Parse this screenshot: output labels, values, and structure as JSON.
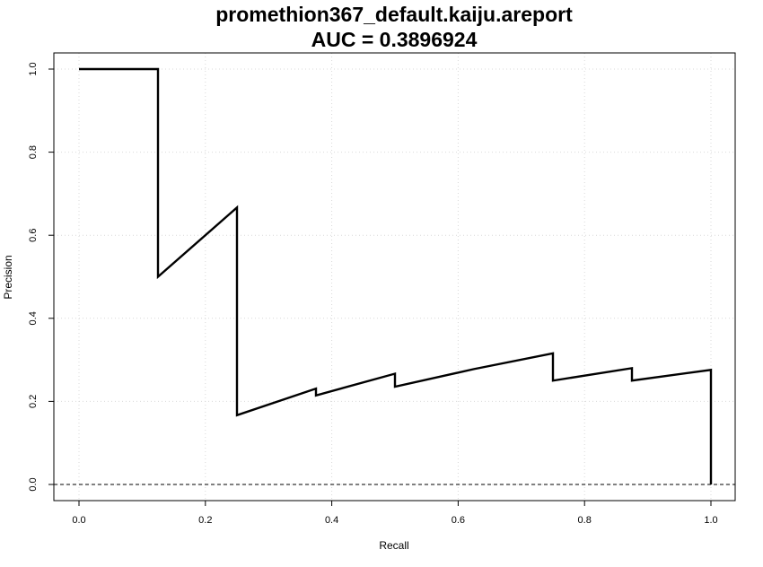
{
  "chart_data": {
    "type": "line",
    "title": "promethion367_default.kaiju.areport",
    "subtitle": "AUC = 0.3896924",
    "xlabel": "Recall",
    "ylabel": "Precision",
    "xlim": [
      0,
      1
    ],
    "ylim": [
      0,
      1
    ],
    "x_ticks": [
      "0.0",
      "0.2",
      "0.4",
      "0.6",
      "0.8",
      "1.0"
    ],
    "y_ticks": [
      "0.0",
      "0.2",
      "0.4",
      "0.6",
      "0.8",
      "1.0"
    ],
    "grid": true,
    "baseline": {
      "y": 0,
      "style": "dashed"
    },
    "series": [
      {
        "x": [
          0,
          0.125,
          0.125,
          0.25,
          0.25,
          0.375,
          0.375,
          0.5,
          0.5,
          0.625,
          0.75,
          0.75,
          0.875,
          0.875,
          1,
          1
        ],
        "y": [
          1,
          1,
          0.5,
          0.6667,
          0.1667,
          0.2308,
          0.2143,
          0.2667,
          0.2353,
          0.2778,
          0.3158,
          0.25,
          0.28,
          0.25,
          0.2759,
          0
        ],
        "color": "#000000"
      }
    ]
  }
}
